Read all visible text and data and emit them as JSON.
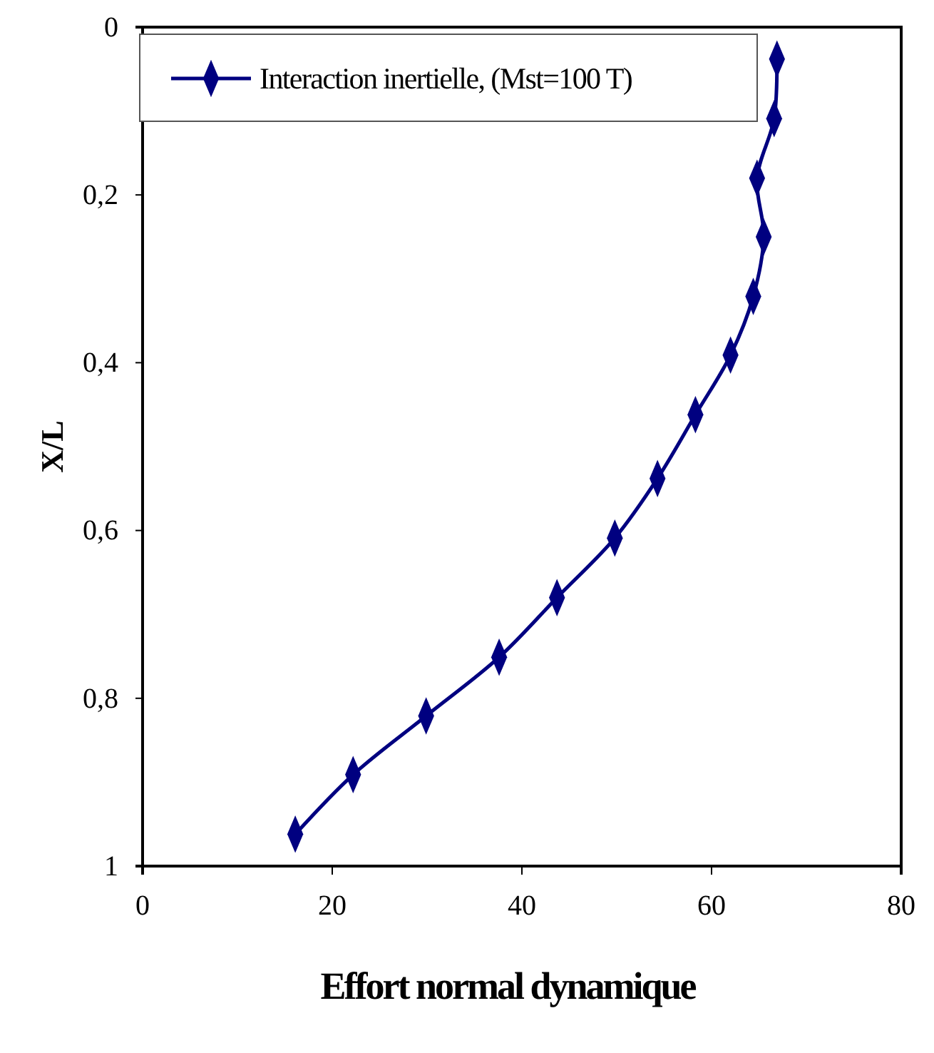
{
  "chart_data": {
    "type": "line",
    "xlabel": "Effort normal dynamique",
    "ylabel": "X/L",
    "xlim": [
      0,
      80
    ],
    "xticks": [
      0,
      20,
      40,
      60,
      80
    ],
    "ylim": [
      1,
      0
    ],
    "yticks": [
      {
        "value": 0,
        "label": "0"
      },
      {
        "value": 0.2,
        "label": "0,2"
      },
      {
        "value": 0.4,
        "label": "0,4"
      },
      {
        "value": 0.6,
        "label": "0,6"
      },
      {
        "value": 0.8,
        "label": "0,8"
      },
      {
        "value": 1,
        "label": "1"
      }
    ],
    "grid": false,
    "legend": "top left",
    "marker": "diamond",
    "line_style": "solid",
    "series": [
      {
        "name": "Interaction inertielle, (Mst=100 T)",
        "color": "#000080",
        "x": [
          66.9,
          66.6,
          64.8,
          65.5,
          64.4,
          62.0,
          58.3,
          54.3,
          49.8,
          43.7,
          37.6,
          29.9,
          22.2,
          16.1
        ],
        "values": [
          0.038,
          0.109,
          0.18,
          0.25,
          0.321,
          0.391,
          0.462,
          0.538,
          0.609,
          0.68,
          0.751,
          0.821,
          0.891,
          0.962
        ]
      }
    ]
  }
}
